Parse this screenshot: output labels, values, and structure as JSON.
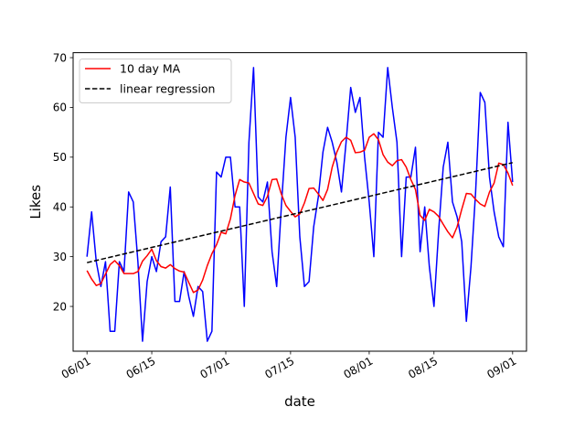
{
  "chart_data": {
    "type": "line",
    "title": "",
    "xlabel": "date",
    "ylabel": "Likes",
    "x_ticks": [
      "06/01",
      "06/15",
      "07/01",
      "07/15",
      "08/01",
      "08/15",
      "09/01"
    ],
    "y_ticks": [
      20,
      30,
      40,
      50,
      60,
      70
    ],
    "xlim": [
      "2023-05-29",
      "2023-09-04"
    ],
    "ylim": [
      11,
      71
    ],
    "grid": false,
    "legend_position": "top-left",
    "series": [
      {
        "key": "daily",
        "color": "#0000ff",
        "style": "solid",
        "points": [
          [
            "2023-06-01",
            30
          ],
          [
            "2023-06-02",
            39
          ],
          [
            "2023-06-03",
            29
          ],
          [
            "2023-06-04",
            24
          ],
          [
            "2023-06-05",
            29
          ],
          [
            "2023-06-06",
            15
          ],
          [
            "2023-06-07",
            15
          ],
          [
            "2023-06-08",
            29
          ],
          [
            "2023-06-09",
            27
          ],
          [
            "2023-06-10",
            43
          ],
          [
            "2023-06-11",
            41
          ],
          [
            "2023-06-12",
            29
          ],
          [
            "2023-06-13",
            13
          ],
          [
            "2023-06-14",
            25
          ],
          [
            "2023-06-15",
            30
          ],
          [
            "2023-06-16",
            27
          ],
          [
            "2023-06-17",
            33
          ],
          [
            "2023-06-18",
            34
          ],
          [
            "2023-06-19",
            44
          ],
          [
            "2023-06-20",
            21
          ],
          [
            "2023-06-21",
            21
          ],
          [
            "2023-06-22",
            27
          ],
          [
            "2023-06-23",
            22
          ],
          [
            "2023-06-24",
            18
          ],
          [
            "2023-06-25",
            24
          ],
          [
            "2023-06-26",
            23
          ],
          [
            "2023-06-27",
            13
          ],
          [
            "2023-06-28",
            15
          ],
          [
            "2023-06-29",
            47
          ],
          [
            "2023-06-30",
            46
          ],
          [
            "2023-07-01",
            50
          ],
          [
            "2023-07-02",
            50
          ],
          [
            "2023-07-03",
            40
          ],
          [
            "2023-07-04",
            40
          ],
          [
            "2023-07-05",
            20
          ],
          [
            "2023-07-06",
            53
          ],
          [
            "2023-07-07",
            68
          ],
          [
            "2023-07-08",
            42
          ],
          [
            "2023-07-09",
            41
          ],
          [
            "2023-07-10",
            45
          ],
          [
            "2023-07-11",
            31
          ],
          [
            "2023-07-12",
            24
          ],
          [
            "2023-07-13",
            40
          ],
          [
            "2023-07-14",
            54
          ],
          [
            "2023-07-15",
            62
          ],
          [
            "2023-07-16",
            54
          ],
          [
            "2023-07-17",
            34
          ],
          [
            "2023-07-18",
            24
          ],
          [
            "2023-07-19",
            25
          ],
          [
            "2023-07-20",
            36
          ],
          [
            "2023-07-21",
            42
          ],
          [
            "2023-07-22",
            51
          ],
          [
            "2023-07-23",
            56
          ],
          [
            "2023-07-24",
            53
          ],
          [
            "2023-07-25",
            49
          ],
          [
            "2023-07-26",
            43
          ],
          [
            "2023-07-27",
            53
          ],
          [
            "2023-07-28",
            64
          ],
          [
            "2023-07-29",
            59
          ],
          [
            "2023-07-30",
            62
          ],
          [
            "2023-07-31",
            50
          ],
          [
            "2023-08-01",
            41
          ],
          [
            "2023-08-02",
            30
          ],
          [
            "2023-08-03",
            55
          ],
          [
            "2023-08-04",
            54
          ],
          [
            "2023-08-05",
            68
          ],
          [
            "2023-08-06",
            60
          ],
          [
            "2023-08-07",
            53
          ],
          [
            "2023-08-08",
            30
          ],
          [
            "2023-08-09",
            46
          ],
          [
            "2023-08-10",
            46
          ],
          [
            "2023-08-11",
            52
          ],
          [
            "2023-08-12",
            31
          ],
          [
            "2023-08-13",
            40
          ],
          [
            "2023-08-14",
            28
          ],
          [
            "2023-08-15",
            20
          ],
          [
            "2023-08-16",
            35
          ],
          [
            "2023-08-17",
            48
          ],
          [
            "2023-08-18",
            53
          ],
          [
            "2023-08-19",
            41
          ],
          [
            "2023-08-20",
            38
          ],
          [
            "2023-08-21",
            33
          ],
          [
            "2023-08-22",
            17
          ],
          [
            "2023-08-23",
            28
          ],
          [
            "2023-08-24",
            43
          ],
          [
            "2023-08-25",
            63
          ],
          [
            "2023-08-26",
            61
          ],
          [
            "2023-08-27",
            46
          ],
          [
            "2023-08-28",
            39
          ],
          [
            "2023-08-29",
            34
          ],
          [
            "2023-08-30",
            32
          ],
          [
            "2023-08-31",
            57
          ],
          [
            "2023-09-01",
            45
          ]
        ]
      },
      {
        "key": "ma",
        "name": "10 day MA",
        "color": "#ff0000",
        "style": "solid",
        "points": [
          [
            "2023-06-01",
            27.2
          ],
          [
            "2023-06-02",
            25.5
          ],
          [
            "2023-06-03",
            24.2
          ],
          [
            "2023-06-04",
            24.6
          ],
          [
            "2023-06-05",
            26.5
          ],
          [
            "2023-06-06",
            28.4
          ],
          [
            "2023-06-07",
            29.2
          ],
          [
            "2023-06-08",
            28.2
          ],
          [
            "2023-06-09",
            26.6
          ],
          [
            "2023-06-10",
            26.6
          ],
          [
            "2023-06-11",
            26.6
          ],
          [
            "2023-06-12",
            27.0
          ],
          [
            "2023-06-13",
            29.1
          ],
          [
            "2023-06-14",
            30.2
          ],
          [
            "2023-06-15",
            31.5
          ],
          [
            "2023-06-16",
            29.2
          ],
          [
            "2023-06-17",
            28.0
          ],
          [
            "2023-06-18",
            27.7
          ],
          [
            "2023-06-19",
            28.4
          ],
          [
            "2023-06-20",
            27.6
          ],
          [
            "2023-06-21",
            27.1
          ],
          [
            "2023-06-22",
            26.9
          ],
          [
            "2023-06-23",
            24.8
          ],
          [
            "2023-06-24",
            22.8
          ],
          [
            "2023-06-25",
            23.3
          ],
          [
            "2023-06-26",
            25.3
          ],
          [
            "2023-06-27",
            28.2
          ],
          [
            "2023-06-28",
            30.6
          ],
          [
            "2023-06-29",
            32.4
          ],
          [
            "2023-06-30",
            34.9
          ],
          [
            "2023-07-01",
            34.6
          ],
          [
            "2023-07-02",
            37.6
          ],
          [
            "2023-07-03",
            42.3
          ],
          [
            "2023-07-04",
            45.5
          ],
          [
            "2023-07-05",
            45.0
          ],
          [
            "2023-07-06",
            44.8
          ],
          [
            "2023-07-07",
            42.7
          ],
          [
            "2023-07-08",
            40.6
          ],
          [
            "2023-07-09",
            40.3
          ],
          [
            "2023-07-10",
            42.1
          ],
          [
            "2023-07-11",
            45.5
          ],
          [
            "2023-07-12",
            45.6
          ],
          [
            "2023-07-13",
            42.6
          ],
          [
            "2023-07-14",
            40.3
          ],
          [
            "2023-07-15",
            39.1
          ],
          [
            "2023-07-16",
            38.0
          ],
          [
            "2023-07-17",
            38.6
          ],
          [
            "2023-07-18",
            40.8
          ],
          [
            "2023-07-19",
            43.7
          ],
          [
            "2023-07-20",
            43.8
          ],
          [
            "2023-07-21",
            42.6
          ],
          [
            "2023-07-22",
            41.3
          ],
          [
            "2023-07-23",
            43.5
          ],
          [
            "2023-07-24",
            48.0
          ],
          [
            "2023-07-25",
            51.0
          ],
          [
            "2023-07-26",
            53.1
          ],
          [
            "2023-07-27",
            54.0
          ],
          [
            "2023-07-28",
            53.4
          ],
          [
            "2023-07-29",
            50.9
          ],
          [
            "2023-07-30",
            51.0
          ],
          [
            "2023-07-31",
            51.4
          ],
          [
            "2023-08-01",
            54.0
          ],
          [
            "2023-08-02",
            54.7
          ],
          [
            "2023-08-03",
            53.5
          ],
          [
            "2023-08-04",
            50.5
          ],
          [
            "2023-08-05",
            49.0
          ],
          [
            "2023-08-06",
            48.3
          ],
          [
            "2023-08-07",
            49.3
          ],
          [
            "2023-08-08",
            49.5
          ],
          [
            "2023-08-09",
            48.0
          ],
          [
            "2023-08-10",
            45.5
          ],
          [
            "2023-08-11",
            43.5
          ],
          [
            "2023-08-12",
            38.3
          ],
          [
            "2023-08-13",
            37.3
          ],
          [
            "2023-08-14",
            39.5
          ],
          [
            "2023-08-15",
            39.0
          ],
          [
            "2023-08-16",
            38.1
          ],
          [
            "2023-08-17",
            36.5
          ],
          [
            "2023-08-18",
            35.0
          ],
          [
            "2023-08-19",
            33.8
          ],
          [
            "2023-08-20",
            36.0
          ],
          [
            "2023-08-21",
            39.5
          ],
          [
            "2023-08-22",
            42.7
          ],
          [
            "2023-08-23",
            42.6
          ],
          [
            "2023-08-24",
            41.5
          ],
          [
            "2023-08-25",
            40.6
          ],
          [
            "2023-08-26",
            40.1
          ],
          [
            "2023-08-27",
            43.0
          ],
          [
            "2023-08-28",
            44.8
          ],
          [
            "2023-08-29",
            48.8
          ],
          [
            "2023-08-30",
            48.5
          ],
          [
            "2023-08-31",
            46.8
          ],
          [
            "2023-09-01",
            44.3
          ]
        ]
      },
      {
        "key": "trend",
        "name": "linear regression",
        "color": "#000000",
        "style": "dashed",
        "points": [
          [
            "2023-06-01",
            28.8
          ],
          [
            "2023-09-01",
            48.9
          ]
        ]
      }
    ]
  }
}
